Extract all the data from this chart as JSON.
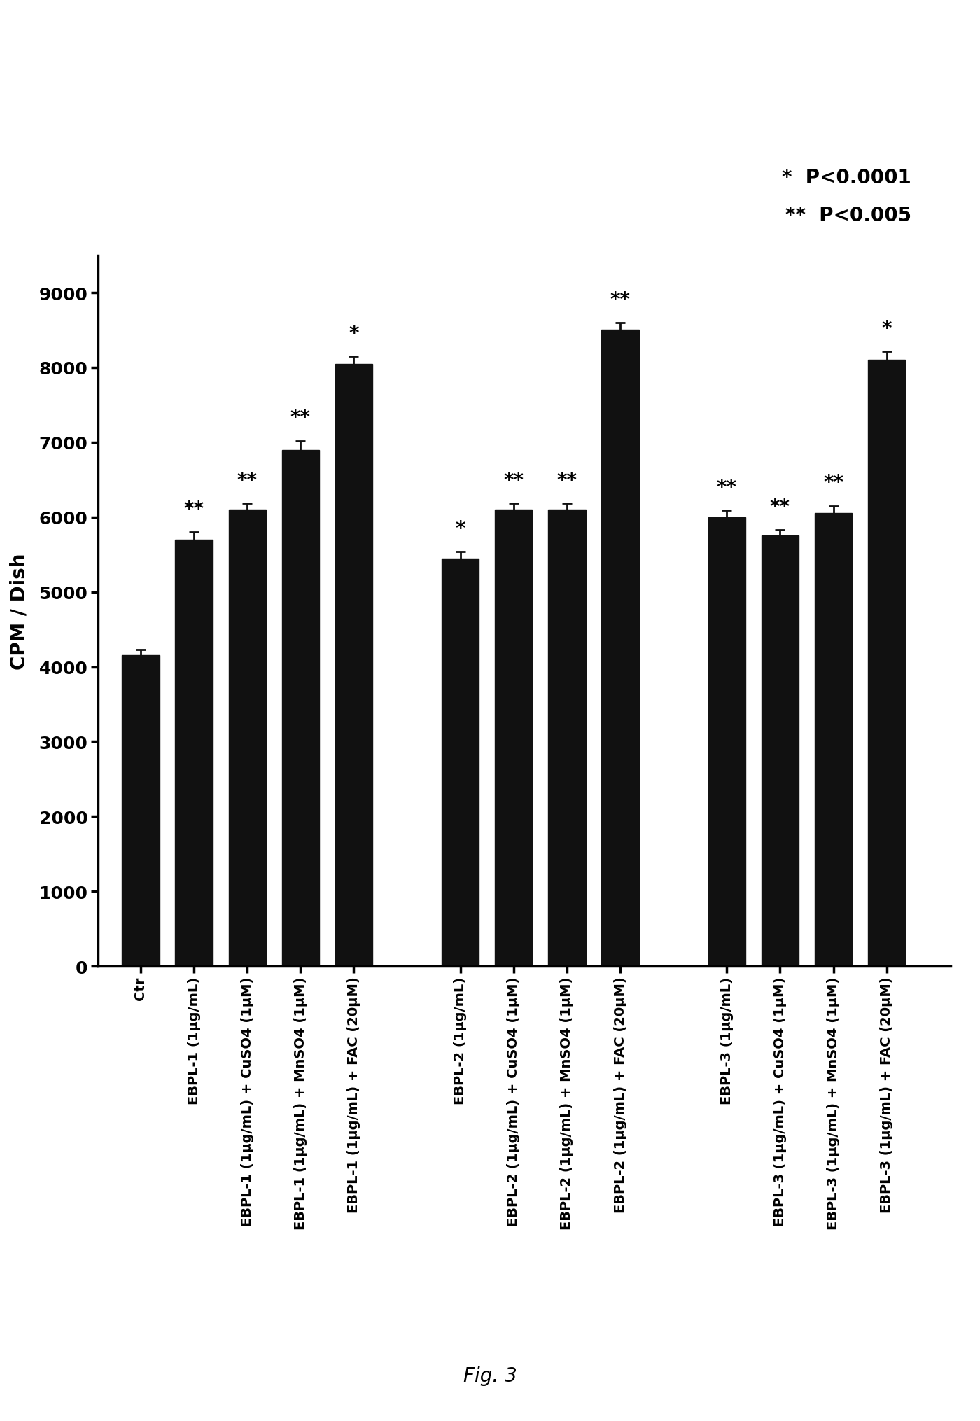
{
  "categories": [
    "Ctr",
    "EBPL-1 (1μg/mL)",
    "EBPL-1 (1μg/mL) + CuSO4 (1μM)",
    "EBPL-1 (1μg/mL) + MnSO4 (1μM)",
    "EBPL-1 (1μg/mL) + FAC (20μM)",
    "EBPL-2 (1μg/mL)",
    "EBPL-2 (1μg/mL) + CuSO4 (1μM)",
    "EBPL-2 (1μg/mL) + MnSO4 (1μM)",
    "EBPL-2 (1μg/mL) + FAC (20μM)",
    "EBPL-3 (1μg/mL)",
    "EBPL-3 (1μg/mL) + CuSO4 (1μM)",
    "EBPL-3 (1μg/mL) + MnSO4 (1μM)",
    "EBPL-3 (1μg/mL) + FAC (20μM)"
  ],
  "values": [
    4150,
    5700,
    6100,
    6900,
    8050,
    5450,
    6100,
    6100,
    8500,
    6000,
    5750,
    6050,
    8100
  ],
  "errors": [
    80,
    100,
    80,
    120,
    100,
    90,
    80,
    80,
    100,
    90,
    80,
    100,
    110
  ],
  "bar_color": "#111111",
  "bar_width": 0.7,
  "significance": [
    "",
    "**",
    "**",
    "**",
    "*",
    "*",
    "**",
    "**",
    "**",
    "**",
    "**",
    "**",
    "*"
  ],
  "ylabel": "CPM / Dish",
  "ylim": [
    0,
    9500
  ],
  "yticks": [
    0,
    1000,
    2000,
    3000,
    4000,
    5000,
    6000,
    7000,
    8000,
    9000
  ],
  "legend_text1": "*  P<0.0001",
  "legend_text2": "**  P<0.005",
  "figure_label": "Fig. 3",
  "background_color": "#ffffff",
  "group_gaps": [
    0,
    1,
    2,
    3,
    4,
    6,
    7,
    8,
    9,
    11,
    12,
    13,
    14
  ]
}
